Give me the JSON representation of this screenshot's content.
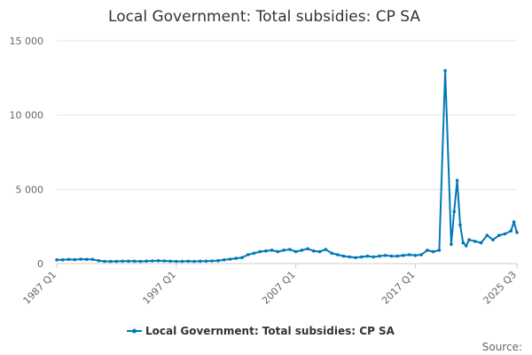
{
  "colors": {
    "series": "#0079b8",
    "grid": "#e6e6e6",
    "axis": "#cccccc"
  },
  "chart_data": {
    "type": "line",
    "title": "Local Government: Total subsidies: CP SA",
    "xlabel": "",
    "ylabel": "",
    "ylim": [
      0,
      15000
    ],
    "y_ticks": [
      0,
      5000,
      10000,
      15000
    ],
    "y_tick_labels": [
      "0",
      "5 000",
      "10 000",
      "15 000"
    ],
    "x_tick_labels": [
      "1987 Q1",
      "1997 Q1",
      "2007 Q1",
      "2017 Q1",
      "2025 Q3"
    ],
    "x_ticks": [
      "1987 Q1",
      "1997 Q1",
      "2007 Q1",
      "2017 Q1",
      "2025 Q3"
    ],
    "grid": true,
    "legend": "bottom",
    "source_label": "Source:",
    "series": [
      {
        "name": "Local Government: Total subsidies: CP SA",
        "x": [
          "1987 Q1",
          "1987 Q3",
          "1988 Q1",
          "1988 Q3",
          "1989 Q1",
          "1989 Q3",
          "1990 Q1",
          "1990 Q3",
          "1991 Q1",
          "1991 Q3",
          "1992 Q1",
          "1992 Q3",
          "1993 Q1",
          "1993 Q3",
          "1994 Q1",
          "1994 Q3",
          "1995 Q1",
          "1995 Q3",
          "1996 Q1",
          "1996 Q3",
          "1997 Q1",
          "1997 Q3",
          "1998 Q1",
          "1998 Q3",
          "1999 Q1",
          "1999 Q3",
          "2000 Q1",
          "2000 Q3",
          "2001 Q1",
          "2001 Q3",
          "2002 Q1",
          "2002 Q3",
          "2003 Q1",
          "2003 Q3",
          "2004 Q1",
          "2004 Q3",
          "2005 Q1",
          "2005 Q3",
          "2006 Q1",
          "2006 Q3",
          "2007 Q1",
          "2007 Q3",
          "2008 Q1",
          "2008 Q3",
          "2009 Q1",
          "2009 Q3",
          "2010 Q1",
          "2010 Q3",
          "2011 Q1",
          "2011 Q3",
          "2012 Q1",
          "2012 Q3",
          "2013 Q1",
          "2013 Q3",
          "2014 Q1",
          "2014 Q3",
          "2015 Q1",
          "2015 Q3",
          "2016 Q1",
          "2016 Q3",
          "2017 Q1",
          "2017 Q3",
          "2018 Q1",
          "2018 Q3",
          "2019 Q1",
          "2019 Q3",
          "2020 Q1",
          "2020 Q2",
          "2020 Q3",
          "2020 Q4",
          "2021 Q1",
          "2021 Q2",
          "2021 Q3",
          "2022 Q1",
          "2022 Q3",
          "2023 Q1",
          "2023 Q3",
          "2024 Q1",
          "2024 Q3",
          "2025 Q1",
          "2025 Q2",
          "2025 Q3"
        ],
        "values": [
          250,
          250,
          280,
          260,
          300,
          280,
          280,
          200,
          150,
          150,
          150,
          160,
          160,
          160,
          150,
          170,
          180,
          190,
          180,
          160,
          150,
          150,
          160,
          150,
          160,
          170,
          180,
          200,
          250,
          300,
          350,
          400,
          600,
          700,
          800,
          850,
          900,
          800,
          900,
          950,
          800,
          900,
          1000,
          850,
          800,
          950,
          700,
          600,
          500,
          450,
          400,
          450,
          500,
          450,
          500,
          550,
          500,
          500,
          550,
          600,
          550,
          600,
          900,
          800,
          900,
          13000,
          1300,
          3500,
          5600,
          2600,
          1400,
          1200,
          1600,
          1500,
          1400,
          1900,
          1600,
          1900,
          2000,
          2200,
          2800,
          2100
        ]
      }
    ]
  }
}
